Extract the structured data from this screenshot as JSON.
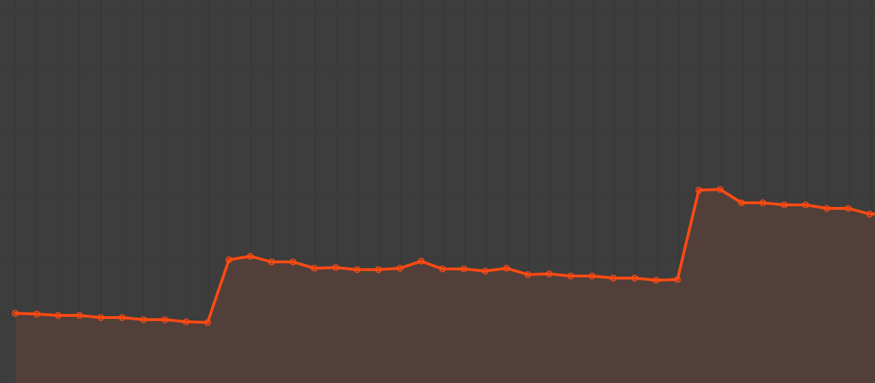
{
  "app": {
    "background_color": "#3d3d3d",
    "grid_color": "#363636"
  },
  "chart_data": {
    "type": "area",
    "title": "",
    "xlabel": "",
    "ylabel": "",
    "grid": true,
    "x": [
      0,
      1,
      2,
      3,
      4,
      5,
      6,
      7,
      8,
      9,
      10,
      11,
      12,
      13,
      14,
      15,
      16,
      17,
      18,
      19,
      20,
      21,
      22,
      23,
      24,
      25,
      26,
      27,
      28,
      29,
      30,
      31,
      32,
      33,
      34,
      35,
      36,
      37,
      38,
      39,
      40,
      41
    ],
    "xlim": [
      -0.72,
      40.25
    ],
    "ylim": [
      0,
      544
    ],
    "series": [
      {
        "line_color": "#ff4a12",
        "fill_color": "#523f3a",
        "values": [
          99,
          98,
          96,
          96,
          93,
          93,
          90,
          90,
          87,
          86,
          175,
          180,
          172,
          172,
          163,
          164,
          161,
          161,
          163,
          173,
          162,
          162,
          159,
          163,
          154,
          155,
          152,
          152,
          149,
          149,
          146,
          147,
          274,
          275,
          256,
          256,
          253,
          253,
          248,
          248,
          240,
          241
        ]
      }
    ]
  }
}
